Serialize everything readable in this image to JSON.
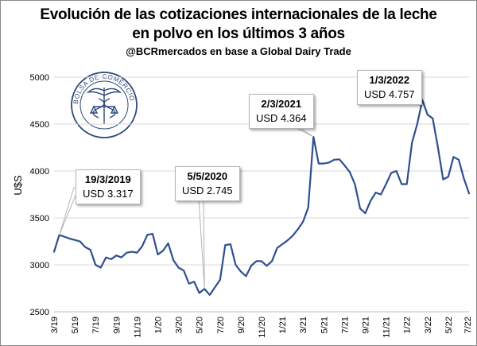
{
  "title": {
    "line1": "Evolución de las cotizaciones internacionales de la leche",
    "line2": "en polvo en los últimos 3 años",
    "subtitle": "@BCRmercados en base a Global Dairy Trade"
  },
  "logo": {
    "text": "BOLSA DE COMERCIO DE ROSARIO"
  },
  "chart_data": {
    "type": "line",
    "title": "Evolución de las cotizaciones internacionales de la leche en polvo en los últimos 3 años",
    "xlabel": "",
    "ylabel": "U$S",
    "ylim": [
      2500,
      5000
    ],
    "yticks": [
      2500,
      3000,
      3500,
      4000,
      4500,
      5000
    ],
    "grid": true,
    "x_ticks": [
      "3/19",
      "5/19",
      "7/19",
      "9/19",
      "11/19",
      "1/20",
      "3/20",
      "5/20",
      "7/20",
      "9/20",
      "11/20",
      "1/21",
      "3/21",
      "5/21",
      "7/21",
      "9/21",
      "11/21",
      "1/22",
      "3/22",
      "5/22",
      "7/22"
    ],
    "series": [
      {
        "name": "Leche en polvo",
        "color": "#2e4f8f",
        "values": [
          3140,
          3317,
          3300,
          3280,
          3265,
          3250,
          3190,
          3160,
          3000,
          2970,
          3080,
          3060,
          3100,
          3080,
          3130,
          3140,
          3130,
          3200,
          3320,
          3330,
          3110,
          3150,
          3230,
          3050,
          2970,
          2940,
          2800,
          2820,
          2700,
          2745,
          2680,
          2760,
          2840,
          3210,
          3220,
          3000,
          2930,
          2880,
          2990,
          3040,
          3040,
          2990,
          3040,
          3180,
          3220,
          3260,
          3310,
          3380,
          3460,
          3610,
          4364,
          4080,
          4080,
          4090,
          4120,
          4125,
          4060,
          3990,
          3860,
          3600,
          3550,
          3680,
          3770,
          3750,
          3860,
          3980,
          4000,
          3860,
          3860,
          4300,
          4500,
          4757,
          4600,
          4560,
          4250,
          3910,
          3940,
          4150,
          4120,
          3920,
          3760
        ]
      }
    ],
    "annotations": [
      {
        "date": "19/3/2019",
        "value": "USD 3.317"
      },
      {
        "date": "5/5/2020",
        "value": "USD 2.745"
      },
      {
        "date": "2/3/2021",
        "value": "USD 4.364"
      },
      {
        "date": "1/3/2022",
        "value": "USD 4.757"
      }
    ]
  }
}
